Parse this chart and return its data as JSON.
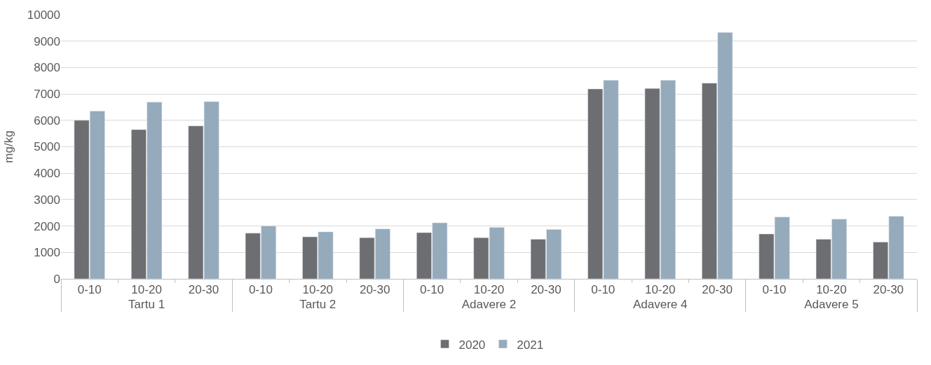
{
  "chart_data": {
    "type": "bar",
    "ylabel": "mg/kg",
    "categories": [
      "0-10",
      "10-20",
      "20-30",
      "0-10",
      "10-20",
      "20-30",
      "0-10",
      "10-20",
      "20-30",
      "0-10",
      "10-20",
      "20-30",
      "0-10",
      "10-20",
      "20-30"
    ],
    "annotations": [
      "Tartu 1",
      "Tartu 2",
      "Adavere 2",
      "Adavere 4",
      "Adavere 5"
    ],
    "series": [
      {
        "name": "2020",
        "color": "#6d6e71",
        "values": [
          6000,
          5650,
          5790,
          1730,
          1590,
          1560,
          1750,
          1560,
          1500,
          7190,
          7210,
          7410,
          1700,
          1500,
          1390
        ]
      },
      {
        "name": "2021",
        "color": "#95aabb",
        "values": [
          6350,
          6690,
          6710,
          2000,
          1780,
          1890,
          2120,
          1950,
          1870,
          7520,
          7520,
          9330,
          2340,
          2260,
          2370
        ]
      }
    ],
    "ylim": [
      0,
      10000
    ],
    "yticks": [
      0,
      1000,
      2000,
      3000,
      4000,
      5000,
      6000,
      7000,
      8000,
      9000,
      10000
    ],
    "grid": "y",
    "legend": "bottom"
  }
}
